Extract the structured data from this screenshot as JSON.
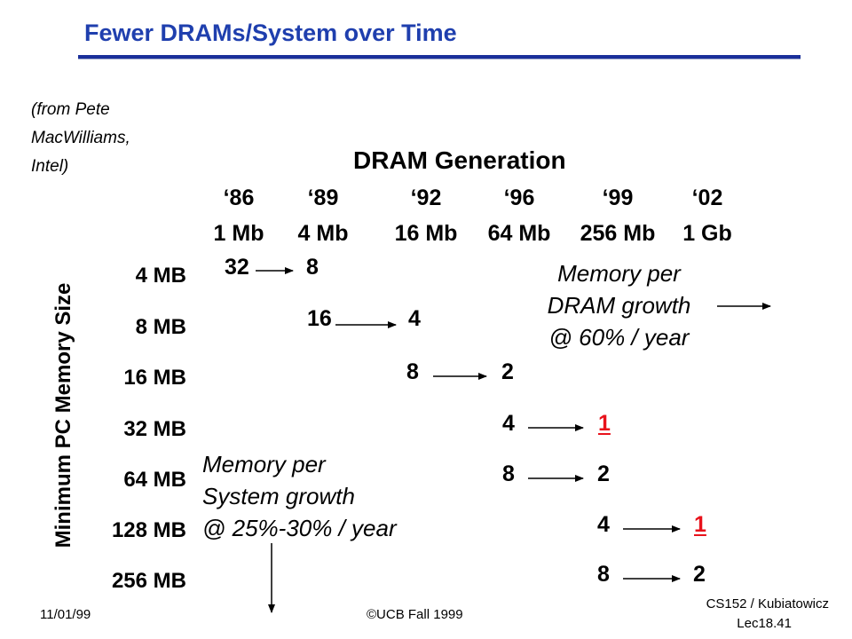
{
  "slide": {
    "title": "Fewer DRAMs/System over Time",
    "source_note": [
      "(from Pete",
      "MacWilliams,",
      "Intel)"
    ],
    "dram_generation_header": "DRAM Generation"
  },
  "generations": [
    {
      "year": "‘86",
      "capacity": "1 Mb"
    },
    {
      "year": "‘89",
      "capacity": "4 Mb"
    },
    {
      "year": "‘92",
      "capacity": "16 Mb"
    },
    {
      "year": "‘96",
      "capacity": "64 Mb"
    },
    {
      "year": "‘99",
      "capacity": "256 Mb"
    },
    {
      "year": "‘02",
      "capacity": "1 Gb"
    }
  ],
  "y_axis_title": "Minimum PC Memory Size",
  "memory_sizes": [
    "4 MB",
    "8 MB",
    "16 MB",
    "32 MB",
    "64 MB",
    "128 MB",
    "256 MB"
  ],
  "cells": {
    "r0_from": "32",
    "r0_to": "8",
    "r1_from": "16",
    "r1_to": "4",
    "r2_from": "8",
    "r2_to": "2",
    "r3_from": "4",
    "r3_to": "1",
    "r4_from": "8",
    "r4_to": "2",
    "r5_from": "4",
    "r5_to": "1",
    "r6_from": "8",
    "r6_to": "2"
  },
  "notes": {
    "dram_growth": [
      "Memory per",
      "DRAM growth",
      "@ 60% / year"
    ],
    "system_growth": [
      "Memory per",
      "System growth",
      "@ 25%-30% / year"
    ]
  },
  "footer": {
    "date": "11/01/99",
    "copyright": "©UCB Fall 1999",
    "course": "CS152 / Kubiatowicz",
    "lecture": "Lec18.41"
  },
  "colors": {
    "title": "#1f3fae",
    "highlight": "#e8121b",
    "text": "#000000"
  }
}
